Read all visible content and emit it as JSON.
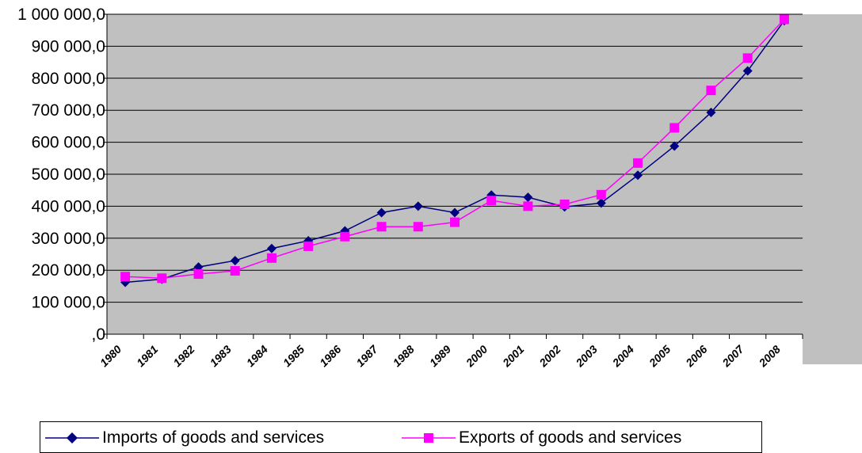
{
  "chart_data": {
    "type": "line",
    "categories": [
      "1980",
      "1981",
      "1982",
      "1983",
      "1984",
      "1985",
      "1986",
      "1987",
      "1988",
      "1989",
      "2000",
      "2001",
      "2002",
      "2003",
      "2004",
      "2005",
      "2006",
      "2007",
      "2008"
    ],
    "x_tick_labels": [
      "1980",
      "1981",
      "1982",
      "1983",
      "1984",
      "1985",
      "1986",
      "1987",
      "1988",
      "1989",
      "2000",
      "2001",
      "2002",
      "2003",
      "2004",
      "2005",
      "2006",
      "2007",
      "2008"
    ],
    "series": [
      {
        "name": "Imports of goods and services",
        "color": "#000080",
        "marker": "diamond",
        "values": [
          162000,
          172000,
          210000,
          230000,
          268000,
          292000,
          323000,
          380000,
          400000,
          380000,
          435000,
          428000,
          398000,
          410000,
          497000,
          588000,
          693000,
          823000,
          980000
        ]
      },
      {
        "name": "Exports of goods and services",
        "color": "#ff00ff",
        "marker": "square",
        "values": [
          180000,
          175000,
          188000,
          198000,
          238000,
          275000,
          305000,
          336000,
          336000,
          350000,
          418000,
          400000,
          406000,
          436000,
          535000,
          645000,
          762000,
          863000,
          984000
        ]
      }
    ],
    "y_tick_labels": [
      ",0",
      "100 000,0",
      "200 000,0",
      "300 000,0",
      "400 000,0",
      "500 000,0",
      "600 000,0",
      "700 000,0",
      "800 000,0",
      "900 000,0",
      "1 000 000,0"
    ],
    "ylim": [
      0,
      1000000
    ],
    "grid": true,
    "legend_position": "bottom",
    "plot_background": "#c0c0c0"
  }
}
